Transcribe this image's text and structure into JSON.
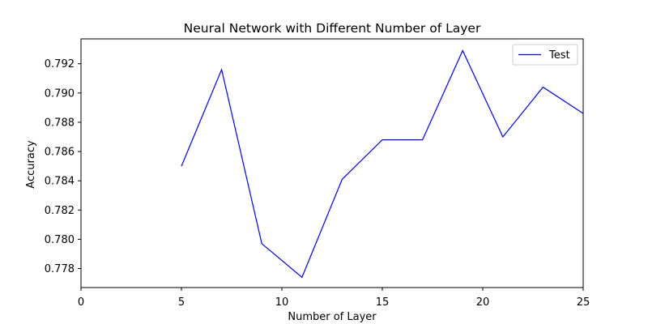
{
  "chart_data": {
    "type": "line",
    "title": "Neural Network with Different Number of Layer",
    "xlabel": "Number of Layer",
    "ylabel": "Accuracy",
    "xlim": [
      0,
      25
    ],
    "ylim": [
      0.7767,
      0.7937
    ],
    "xticks": [
      0,
      5,
      10,
      15,
      20,
      25
    ],
    "yticks": [
      0.778,
      0.78,
      0.782,
      0.784,
      0.786,
      0.788,
      0.79,
      0.792
    ],
    "ytick_labels": [
      "0.778",
      "0.780",
      "0.782",
      "0.784",
      "0.786",
      "0.788",
      "0.790",
      "0.792"
    ],
    "grid": false,
    "legend_position": "top-right",
    "series": [
      {
        "name": "Test",
        "color": "#0000ff",
        "x": [
          5,
          7,
          9,
          11,
          13,
          15,
          17,
          19,
          21,
          23,
          25
        ],
        "y": [
          0.785,
          0.7916,
          0.7797,
          0.7774,
          0.7841,
          0.7868,
          0.7868,
          0.7929,
          0.787,
          0.7904,
          0.7886
        ]
      }
    ]
  }
}
